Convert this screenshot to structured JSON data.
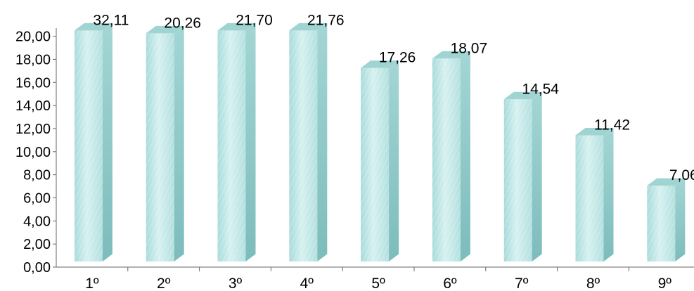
{
  "chart_data": {
    "type": "bar",
    "style": "3d-columns",
    "categories": [
      "1º",
      "2º",
      "3º",
      "4º",
      "5º",
      "6º",
      "7º",
      "8º",
      "9º"
    ],
    "values": [
      32.11,
      20.26,
      21.7,
      21.76,
      17.26,
      18.07,
      14.54,
      11.42,
      7.06
    ],
    "data_labels": [
      "32,11",
      "20,26",
      "21,70",
      "21,76",
      "17,26",
      "18,07",
      "14,54",
      "11,42",
      "7,06"
    ],
    "y_ticks": [
      "0,00",
      "2,00",
      "4,00",
      "6,00",
      "8,00",
      "10,00",
      "12,00",
      "14,00",
      "16,00",
      "18,00",
      "20,00"
    ],
    "ylim": [
      0,
      20
    ],
    "clipped_above_max": true,
    "grid": false,
    "legend": "none",
    "colors": {
      "front": "#bfe6e6",
      "side": "#8fc9c9",
      "top": "#9fd4d2",
      "axis": "#666666"
    }
  }
}
